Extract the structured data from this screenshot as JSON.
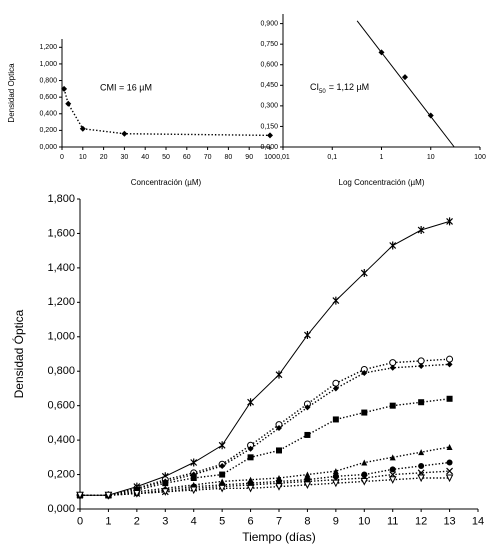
{
  "chart_data": [
    {
      "type": "line",
      "xlabel": "Concentración (µM)",
      "ylabel": "Densidad Optica",
      "annotation": "CMI = 16 µM",
      "x": [
        1,
        3,
        10,
        30,
        100
      ],
      "series": [
        {
          "values": [
            0.7,
            0.52,
            0.22,
            0.16,
            0.14
          ],
          "color": "#000000",
          "marker": "diamond",
          "line_style": "dotted"
        }
      ],
      "xlim": [
        0,
        100
      ],
      "xticks": [
        0,
        10,
        20,
        30,
        40,
        50,
        60,
        70,
        80,
        90,
        100
      ],
      "ylim": [
        0,
        1.3
      ],
      "yticks": [
        {
          "value": 0,
          "label": "0,000"
        },
        {
          "value": 0.2,
          "label": "0,200"
        },
        {
          "value": 0.4,
          "label": "0,400"
        },
        {
          "value": 0.6,
          "label": "0,600"
        },
        {
          "value": 0.8,
          "label": "0,800"
        },
        {
          "value": 1.0,
          "label": "1,000"
        },
        {
          "value": 1.2,
          "label": "1,200"
        }
      ]
    },
    {
      "type": "line",
      "xlabel": "Log Concentración (µM)",
      "annotation": {
        "text": "CI",
        "sub": "50",
        "rest": "= 1,12 µM"
      },
      "xscale": "log",
      "series": [
        {
          "x": [
            1,
            3,
            10
          ],
          "values": [
            0.69,
            0.51,
            0.23
          ],
          "color": "#000000",
          "marker": "diamond",
          "line_style": "none"
        },
        {
          "x": [
            0.32,
            30
          ],
          "values": [
            0.92,
            0
          ],
          "color": "#000000",
          "marker": "none",
          "line_style": "solid"
        }
      ],
      "xlim": [
        0.01,
        100
      ],
      "xticks": [
        {
          "value": 0.01,
          "label": "0,01"
        },
        {
          "value": 0.1,
          "label": "0,1"
        },
        1,
        10,
        100
      ],
      "ylim": [
        0,
        0.97
      ],
      "yticks": [
        {
          "value": 0,
          "label": "0,000"
        },
        {
          "value": 0.15,
          "label": "0,150"
        },
        {
          "value": 0.3,
          "label": "0,300"
        },
        {
          "value": 0.45,
          "label": "0,450"
        },
        {
          "value": 0.6,
          "label": "0,600"
        },
        {
          "value": 0.75,
          "label": "0,750"
        },
        {
          "value": 0.9,
          "label": "0,900"
        }
      ]
    },
    {
      "type": "line",
      "xlabel": "Tiempo (días)",
      "ylabel": "Densidad Óptica",
      "x": [
        0,
        1,
        2,
        3,
        4,
        5,
        6,
        7,
        8,
        9,
        10,
        11,
        12,
        13
      ],
      "series": [
        {
          "values": [
            0.08,
            0.08,
            0.13,
            0.19,
            0.27,
            0.37,
            0.62,
            0.78,
            1.01,
            1.21,
            1.37,
            1.53,
            1.62,
            1.67
          ],
          "color": "#000000",
          "marker": "cross",
          "line_style": "solid"
        },
        {
          "values": [
            0.08,
            0.08,
            0.12,
            0.17,
            0.21,
            0.26,
            0.37,
            0.49,
            0.61,
            0.73,
            0.81,
            0.85,
            0.86,
            0.87
          ],
          "color": "#000000",
          "marker": "circle-open",
          "line_style": "dotted"
        },
        {
          "values": [
            0.08,
            0.08,
            0.12,
            0.16,
            0.2,
            0.25,
            0.35,
            0.47,
            0.59,
            0.7,
            0.79,
            0.82,
            0.83,
            0.84
          ],
          "color": "#000000",
          "marker": "diamond",
          "line_style": "dotted"
        },
        {
          "values": [
            0.08,
            0.08,
            0.11,
            0.15,
            0.18,
            0.2,
            0.3,
            0.34,
            0.43,
            0.52,
            0.56,
            0.6,
            0.62,
            0.64
          ],
          "color": "#000000",
          "marker": "square",
          "line_style": "dotted"
        },
        {
          "values": [
            0.08,
            0.08,
            0.1,
            0.12,
            0.14,
            0.16,
            0.17,
            0.18,
            0.2,
            0.22,
            0.27,
            0.3,
            0.33,
            0.36
          ],
          "color": "#000000",
          "marker": "triangle",
          "line_style": "dotted"
        },
        {
          "values": [
            0.08,
            0.08,
            0.09,
            0.11,
            0.13,
            0.14,
            0.15,
            0.16,
            0.17,
            0.19,
            0.2,
            0.23,
            0.25,
            0.27
          ],
          "color": "#000000",
          "marker": "circle",
          "line_style": "dotted"
        },
        {
          "values": [
            0.08,
            0.08,
            0.09,
            0.1,
            0.12,
            0.13,
            0.14,
            0.15,
            0.16,
            0.17,
            0.18,
            0.2,
            0.21,
            0.22
          ],
          "color": "#000000",
          "marker": "x",
          "line_style": "dotted"
        },
        {
          "values": [
            0.08,
            0.08,
            0.09,
            0.1,
            0.11,
            0.12,
            0.12,
            0.13,
            0.14,
            0.15,
            0.16,
            0.17,
            0.18,
            0.18
          ],
          "color": "#000000",
          "marker": "triangle-down-open",
          "line_style": "dotted"
        }
      ],
      "xlim": [
        0,
        14
      ],
      "xticks": [
        0,
        1,
        2,
        3,
        4,
        5,
        6,
        7,
        8,
        9,
        10,
        11,
        12,
        13,
        14
      ],
      "ylim": [
        0,
        1.8
      ],
      "yticks": [
        {
          "value": 0,
          "label": "0,000"
        },
        {
          "value": 0.2,
          "label": "0,200"
        },
        {
          "value": 0.4,
          "label": "0,400"
        },
        {
          "value": 0.6,
          "label": "0,600"
        },
        {
          "value": 0.8,
          "label": "0,800"
        },
        {
          "value": 1.0,
          "label": "1,000"
        },
        {
          "value": 1.2,
          "label": "1,200"
        },
        {
          "value": 1.4,
          "label": "1,400"
        },
        {
          "value": 1.6,
          "label": "1,600"
        },
        {
          "value": 1.8,
          "label": "1,800"
        }
      ]
    }
  ]
}
